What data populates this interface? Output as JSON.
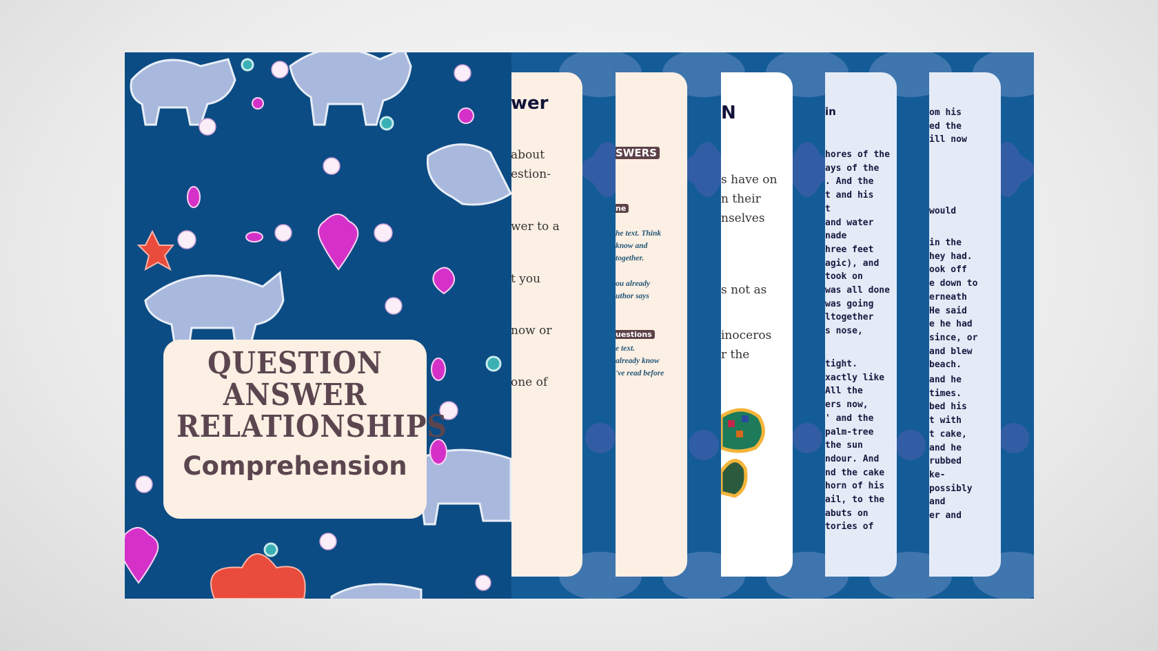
{
  "cover": {
    "title_lines": [
      "QUESTION",
      "ANSWER",
      "RELATIONSHIPS"
    ],
    "subtitle": "Comprehension",
    "colors": {
      "background": "#0c4c84",
      "title": "#5b4650",
      "box": "#fcefe3"
    }
  },
  "cards": [
    {
      "heading": "wer",
      "blocks": [
        [
          "about",
          "estion-"
        ],
        [
          "wer to a"
        ],
        [
          "t you"
        ],
        [
          "now or"
        ],
        [
          "one of"
        ]
      ]
    },
    {
      "badges": [
        "SWERS",
        "ne",
        "uestions"
      ],
      "blocks": [
        [
          "he text. Think",
          "know and",
          "together."
        ],
        [
          "ou already",
          "uthor says"
        ],
        [
          "e text.",
          "already know",
          "'ve read before"
        ]
      ]
    },
    {
      "heading": "N",
      "blocks": [
        [
          "s have on",
          "n their",
          "nselves"
        ],
        [
          "s not as"
        ],
        [
          "inoceros",
          "r the"
        ]
      ]
    },
    {
      "heading": "in",
      "blocks": [
        [
          "hores of the",
          "ays of the",
          ". And the",
          "t and his",
          "t",
          " and water",
          "nade",
          "hree feet",
          "agic), and",
          "took on",
          "was all done",
          " was going",
          "ltogether",
          "s nose,"
        ],
        [
          "tight.",
          "xactly like",
          "All the",
          "ers now,",
          " ' and the",
          "palm-tree",
          " the sun",
          "ndour. And",
          "nd the cake",
          "horn of his",
          "ail, to the",
          "abuts on",
          "tories of"
        ]
      ]
    },
    {
      "blocks": [
        [
          "om his",
          "ed the",
          "ill now"
        ],
        [
          " would"
        ],
        [
          " in the",
          "hey had.",
          "ook off",
          "e down to",
          "erneath",
          " He said",
          "e he had",
          " since, or",
          " and blew",
          "beach."
        ],
        [
          " and he",
          "times.",
          "bed his",
          "t with",
          "t cake,",
          "and he",
          " rubbed",
          "ke-",
          " possibly",
          " and",
          "er and"
        ]
      ]
    }
  ],
  "colors": {
    "strip": "#145c98",
    "card_cream": "#fcefe3",
    "card_white": "#ffffff",
    "card_blue": "#e4ebf7"
  }
}
